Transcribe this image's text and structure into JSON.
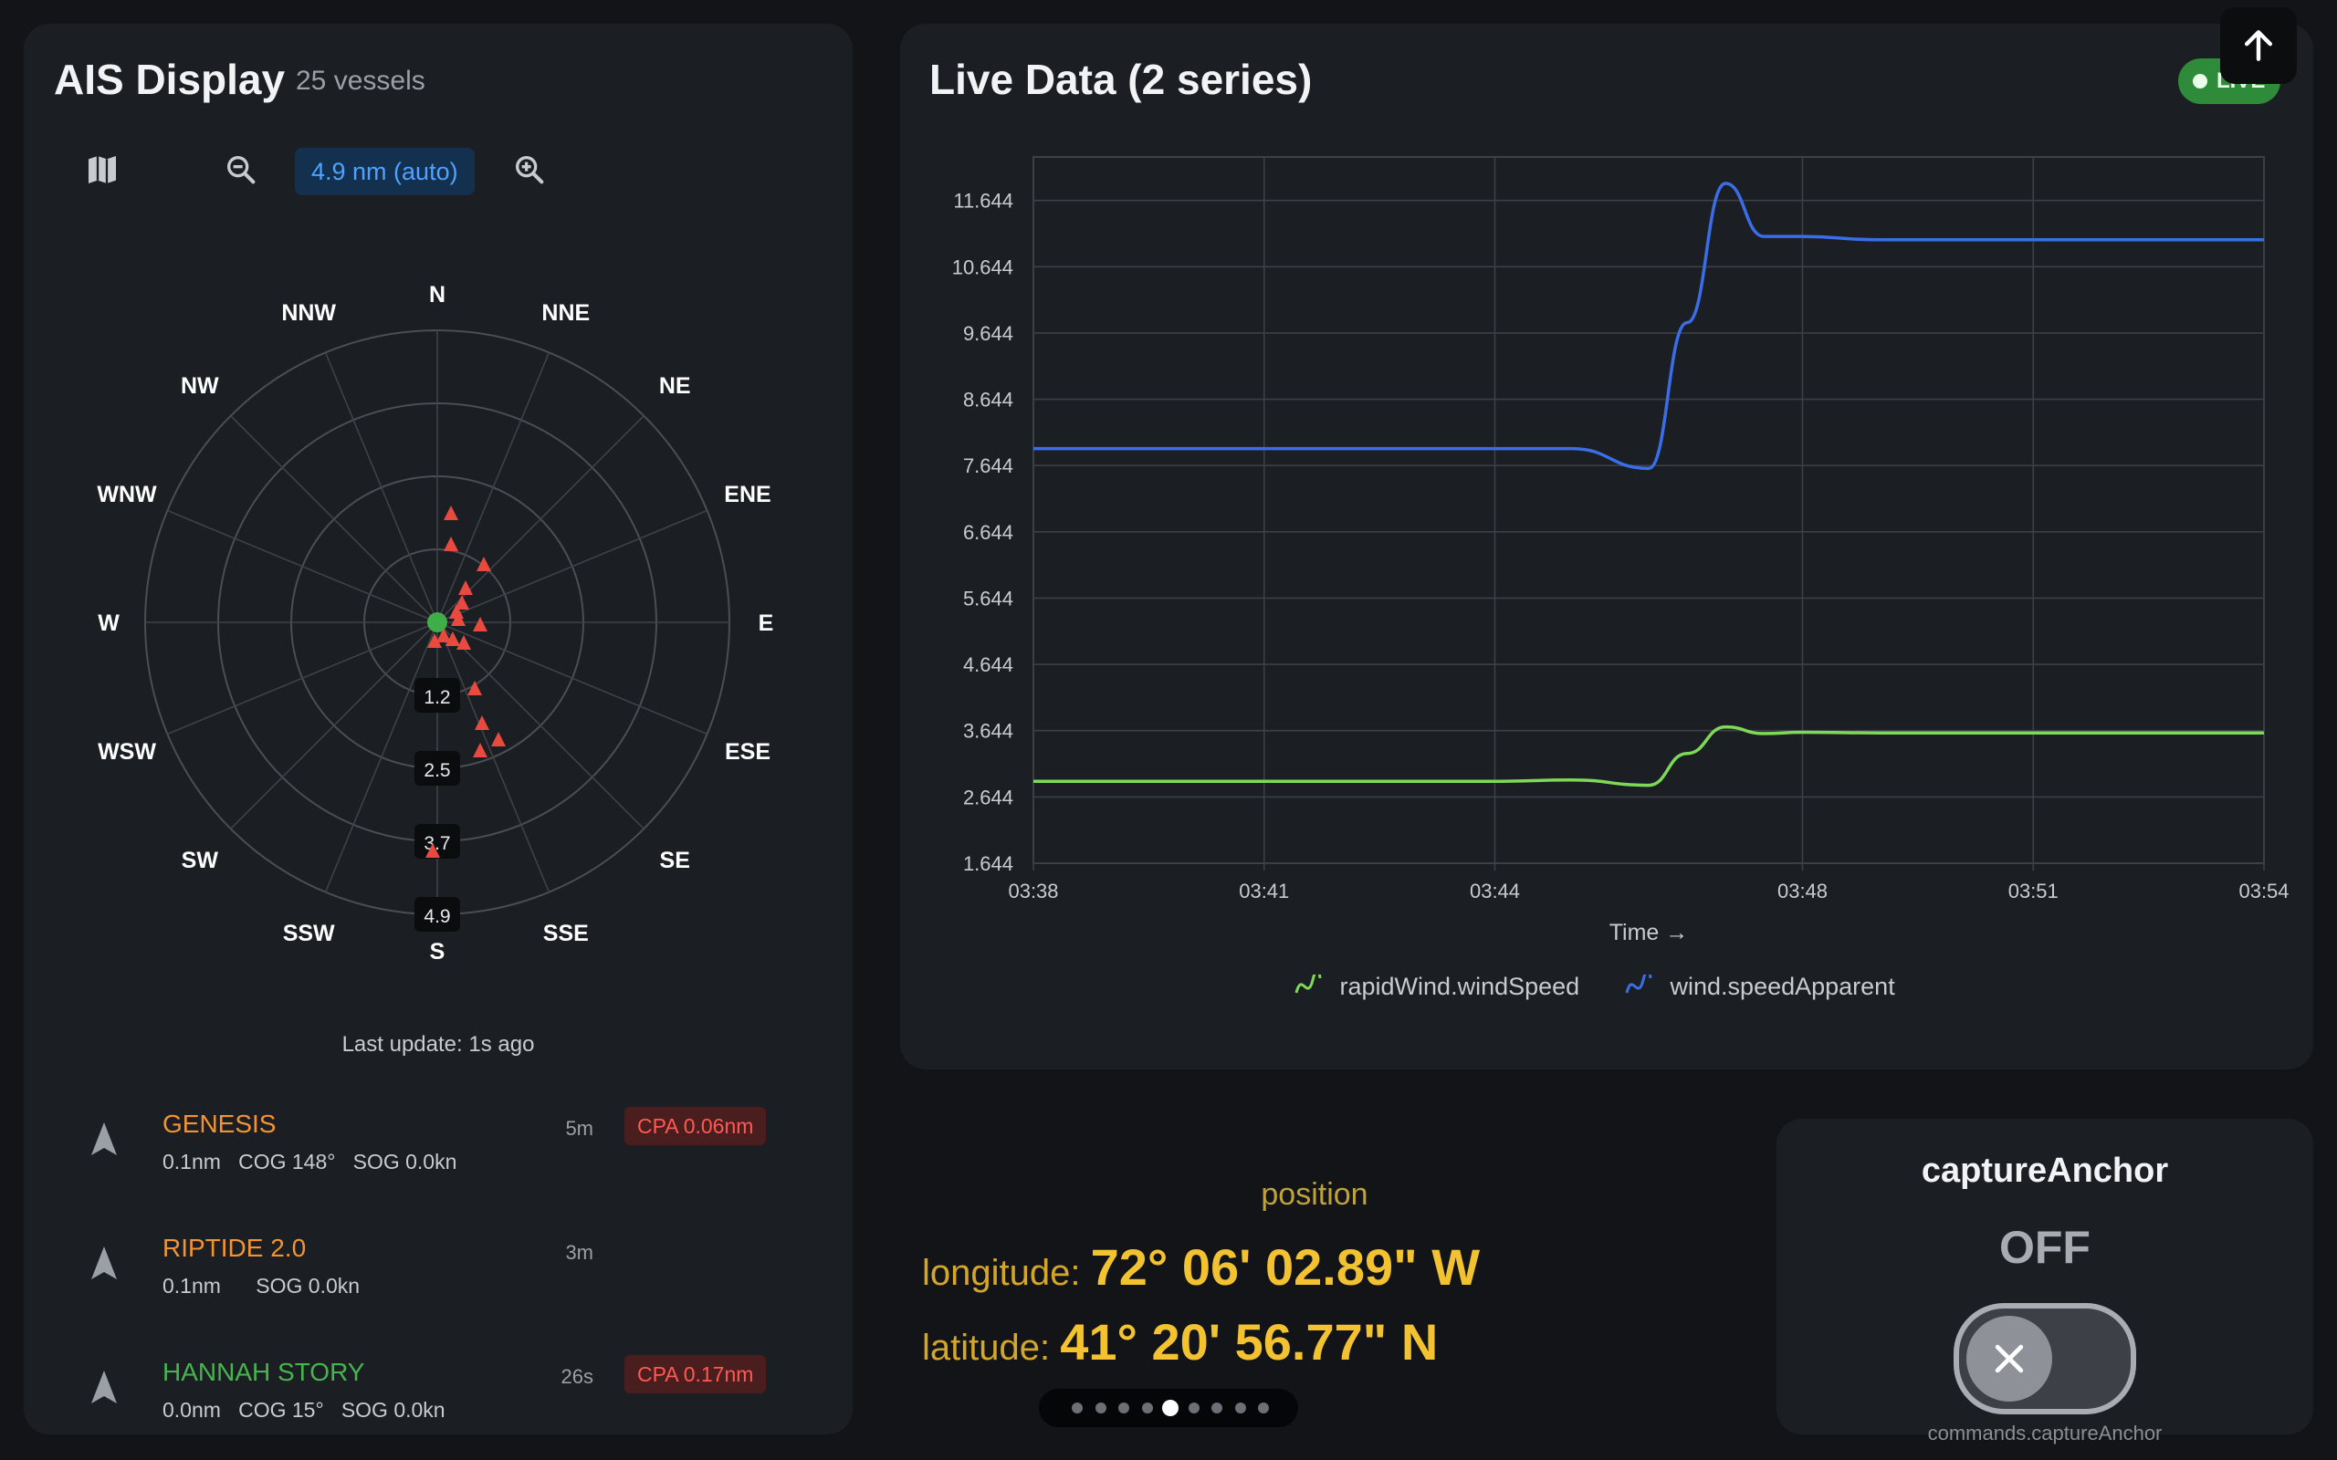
{
  "ais": {
    "title": "AIS Display",
    "vessel_count": "25 vessels",
    "toolbar": {
      "map_icon": "map-icon",
      "zoom_out_icon": "zoom-out-icon",
      "range": "4.9 nm (auto)",
      "zoom_in_icon": "zoom-in-icon"
    },
    "compass": [
      "N",
      "NNE",
      "NE",
      "ENE",
      "E",
      "ESE",
      "SE",
      "SSE",
      "S",
      "SSW",
      "SW",
      "WSW",
      "W",
      "WNW",
      "NW",
      "NNW"
    ],
    "rings": [
      "1.2",
      "2.5",
      "3.7",
      "4.9"
    ],
    "own_ship_color": "#3fae49",
    "target_color": "#e84a3f",
    "last_update": "Last update: 1s ago",
    "vessels": [
      {
        "name": "GENESIS",
        "color": "#f29433",
        "details": "0.1nm   COG 148°   SOG 0.0kn",
        "age": "5m",
        "cpa": "CPA 0.06nm"
      },
      {
        "name": "RIPTIDE 2.0",
        "color": "#f29433",
        "details": "0.1nm      SOG 0.0kn",
        "age": "3m",
        "cpa": ""
      },
      {
        "name": "HANNAH STORY",
        "color": "#47b54d",
        "details": "0.0nm   COG 15°   SOG 0.0kn",
        "age": "26s",
        "cpa": "CPA 0.17nm"
      }
    ]
  },
  "live": {
    "title": "Live Data (2 series)",
    "badge": "LIVE",
    "legend": [
      "rapidWind.windSpeed",
      "wind.speedApparent"
    ]
  },
  "chart_data": {
    "type": "line",
    "xlabel": "Time →",
    "ylabel": "",
    "y_ticks": [
      "11.644",
      "10.644",
      "9.644",
      "8.644",
      "7.644",
      "6.644",
      "5.644",
      "4.644",
      "3.644",
      "2.644",
      "1.644"
    ],
    "ylim": [
      1.644,
      12.3
    ],
    "x_ticks": [
      "03:38",
      "03:41",
      "03:44",
      "03:48",
      "03:51",
      "03:54"
    ],
    "grid": true,
    "legend_placement": "bottom",
    "series": [
      {
        "name": "rapidWind.windSpeed",
        "color": "#7ed957",
        "x": [
          "03:38",
          "03:44",
          "03:45",
          "03:46",
          "03:46:30",
          "03:47",
          "03:47:30",
          "03:48",
          "03:49",
          "03:51",
          "03:54"
        ],
        "values": [
          2.88,
          2.88,
          2.9,
          2.82,
          3.3,
          3.7,
          3.6,
          3.62,
          3.61,
          3.61,
          3.61
        ]
      },
      {
        "name": "wind.speedApparent",
        "color": "#3a6ee8",
        "x": [
          "03:38",
          "03:44",
          "03:45",
          "03:46",
          "03:46:30",
          "03:47",
          "03:47:30",
          "03:48",
          "03:49",
          "03:51",
          "03:54"
        ],
        "values": [
          7.9,
          7.9,
          7.9,
          7.6,
          9.8,
          11.9,
          11.1,
          11.1,
          11.05,
          11.05,
          11.05
        ]
      }
    ]
  },
  "position": {
    "label": "position",
    "longitude_label": "longitude:",
    "longitude": "72° 06' 02.89\" W",
    "latitude_label": "latitude:",
    "latitude": "41° 20' 56.77\" N"
  },
  "pager": {
    "count": 9,
    "active": 4
  },
  "anchor": {
    "title": "captureAnchor",
    "state": "OFF",
    "path": "commands.captureAnchor"
  },
  "scroll_up_icon": "arrow-up-icon"
}
